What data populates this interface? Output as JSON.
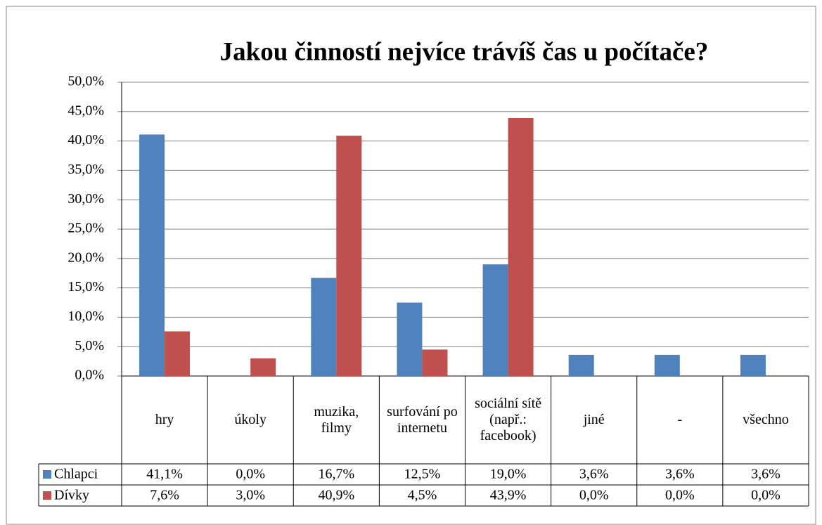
{
  "chart_data": {
    "type": "bar",
    "title": "Jakou činností nejvíce trávíš čas u počítače?",
    "categories": [
      "hry",
      "úkoly",
      "muzika, filmy",
      "surfování po internetu",
      "sociální sítě (např.: facebook)",
      "jiné",
      "-",
      "všechno"
    ],
    "series": [
      {
        "name": "Chlapci",
        "color": "#4f81bd",
        "values": [
          41.1,
          0.0,
          16.7,
          12.5,
          19.0,
          3.6,
          3.6,
          3.6
        ],
        "value_labels": [
          "41,1%",
          "0,0%",
          "16,7%",
          "12,5%",
          "19,0%",
          "3,6%",
          "3,6%",
          "3,6%"
        ]
      },
      {
        "name": "Dívky",
        "color": "#c0504d",
        "values": [
          7.6,
          3.0,
          40.9,
          4.5,
          43.9,
          0.0,
          0.0,
          0.0
        ],
        "value_labels": [
          "7,6%",
          "3,0%",
          "40,9%",
          "4,5%",
          "43,9%",
          "0,0%",
          "0,0%",
          "0,0%"
        ]
      }
    ],
    "ylim": [
      0,
      50
    ],
    "yticks": [
      {
        "value": 0,
        "label": "0,0%"
      },
      {
        "value": 5,
        "label": "5,0%"
      },
      {
        "value": 10,
        "label": "10,0%"
      },
      {
        "value": 15,
        "label": "15,0%"
      },
      {
        "value": 20,
        "label": "20,0%"
      },
      {
        "value": 25,
        "label": "25,0%"
      },
      {
        "value": 30,
        "label": "30,0%"
      },
      {
        "value": 35,
        "label": "35,0%"
      },
      {
        "value": 40,
        "label": "40,0%"
      },
      {
        "value": 45,
        "label": "45,0%"
      },
      {
        "value": 50,
        "label": "50,0%"
      }
    ],
    "grid": true
  }
}
